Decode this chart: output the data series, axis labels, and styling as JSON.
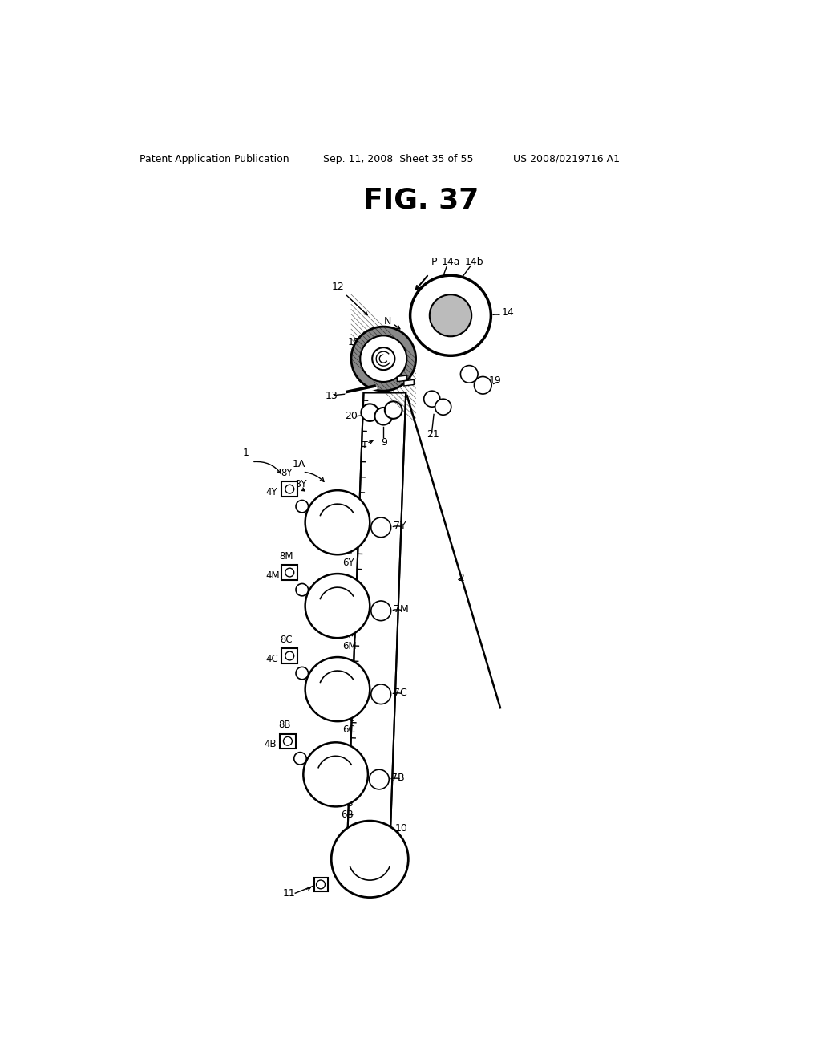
{
  "title": "FIG. 37",
  "header_left": "Patent Application Publication",
  "header_center": "Sep. 11, 2008  Sheet 35 of 55",
  "header_right": "US 2008/0219716 A1",
  "background_color": "#ffffff"
}
